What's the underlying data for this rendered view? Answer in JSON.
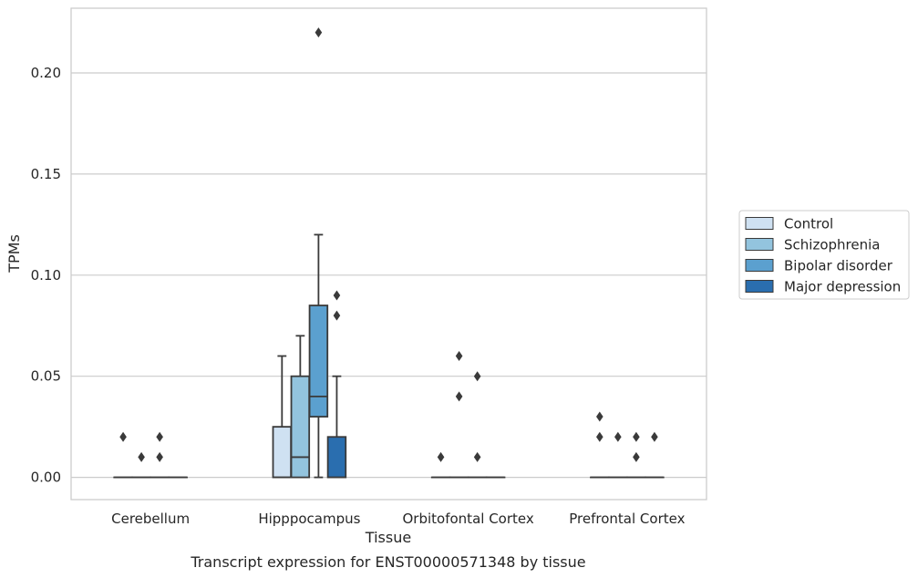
{
  "caption": "Transcript expression for ENST00000571348 by tissue",
  "chart_data": {
    "type": "box",
    "xlabel": "Tissue",
    "ylabel": "TPMs",
    "ylim": [
      -0.011,
      0.232
    ],
    "yticks": [
      0.0,
      0.05,
      0.1,
      0.15,
      0.2
    ],
    "ytick_labels": [
      "0.00",
      "0.05",
      "0.10",
      "0.15",
      "0.20"
    ],
    "grid": "horizontal",
    "legend_position": "right",
    "categories": [
      "Cerebellum",
      "Hipppocampus",
      "Orbitofontal Cortex",
      "Prefrontal Cortex"
    ],
    "series": [
      {
        "name": "Control",
        "color": "#cfe1f2",
        "boxes": [
          {
            "min": 0,
            "q1": 0,
            "median": 0,
            "q3": 0,
            "max": 0,
            "outliers": [
              0.02
            ]
          },
          {
            "min": 0,
            "q1": 0,
            "median": 0,
            "q3": 0.025,
            "max": 0.06,
            "outliers": []
          },
          {
            "min": 0,
            "q1": 0,
            "median": 0,
            "q3": 0,
            "max": 0,
            "outliers": [
              0.01
            ]
          },
          {
            "min": 0,
            "q1": 0,
            "median": 0,
            "q3": 0,
            "max": 0,
            "outliers": [
              0.02,
              0.03
            ]
          }
        ]
      },
      {
        "name": "Schizophrenia",
        "color": "#93c4de",
        "boxes": [
          {
            "min": 0,
            "q1": 0,
            "median": 0,
            "q3": 0,
            "max": 0,
            "outliers": [
              0.01
            ]
          },
          {
            "min": 0,
            "q1": 0,
            "median": 0.01,
            "q3": 0.05,
            "max": 0.07,
            "outliers": []
          },
          {
            "min": 0,
            "q1": 0,
            "median": 0,
            "q3": 0,
            "max": 0,
            "outliers": [
              0.04,
              0.06
            ]
          },
          {
            "min": 0,
            "q1": 0,
            "median": 0,
            "q3": 0,
            "max": 0,
            "outliers": [
              0.02
            ]
          }
        ]
      },
      {
        "name": "Bipolar disorder",
        "color": "#5ba0cf",
        "boxes": [
          {
            "min": 0,
            "q1": 0,
            "median": 0,
            "q3": 0,
            "max": 0,
            "outliers": [
              0.01,
              0.02
            ]
          },
          {
            "min": 0,
            "q1": 0.03,
            "median": 0.04,
            "q3": 0.085,
            "max": 0.12,
            "outliers": [
              0.22
            ]
          },
          {
            "min": 0,
            "q1": 0,
            "median": 0,
            "q3": 0,
            "max": 0,
            "outliers": [
              0.01,
              0.05
            ]
          },
          {
            "min": 0,
            "q1": 0,
            "median": 0,
            "q3": 0,
            "max": 0,
            "outliers": [
              0.01,
              0.02
            ]
          }
        ]
      },
      {
        "name": "Major depression",
        "color": "#2a6eaf",
        "boxes": [
          {
            "min": 0,
            "q1": 0,
            "median": 0,
            "q3": 0,
            "max": 0,
            "outliers": []
          },
          {
            "min": 0,
            "q1": 0,
            "median": 0,
            "q3": 0.02,
            "max": 0.05,
            "outliers": [
              0.08,
              0.09
            ]
          },
          {
            "min": 0,
            "q1": 0,
            "median": 0,
            "q3": 0,
            "max": 0,
            "outliers": []
          },
          {
            "min": 0,
            "q1": 0,
            "median": 0,
            "q3": 0,
            "max": 0,
            "outliers": [
              0.02
            ]
          }
        ]
      }
    ]
  },
  "legend": {
    "items": [
      "Control",
      "Schizophrenia",
      "Bipolar disorder",
      "Major depression"
    ]
  }
}
